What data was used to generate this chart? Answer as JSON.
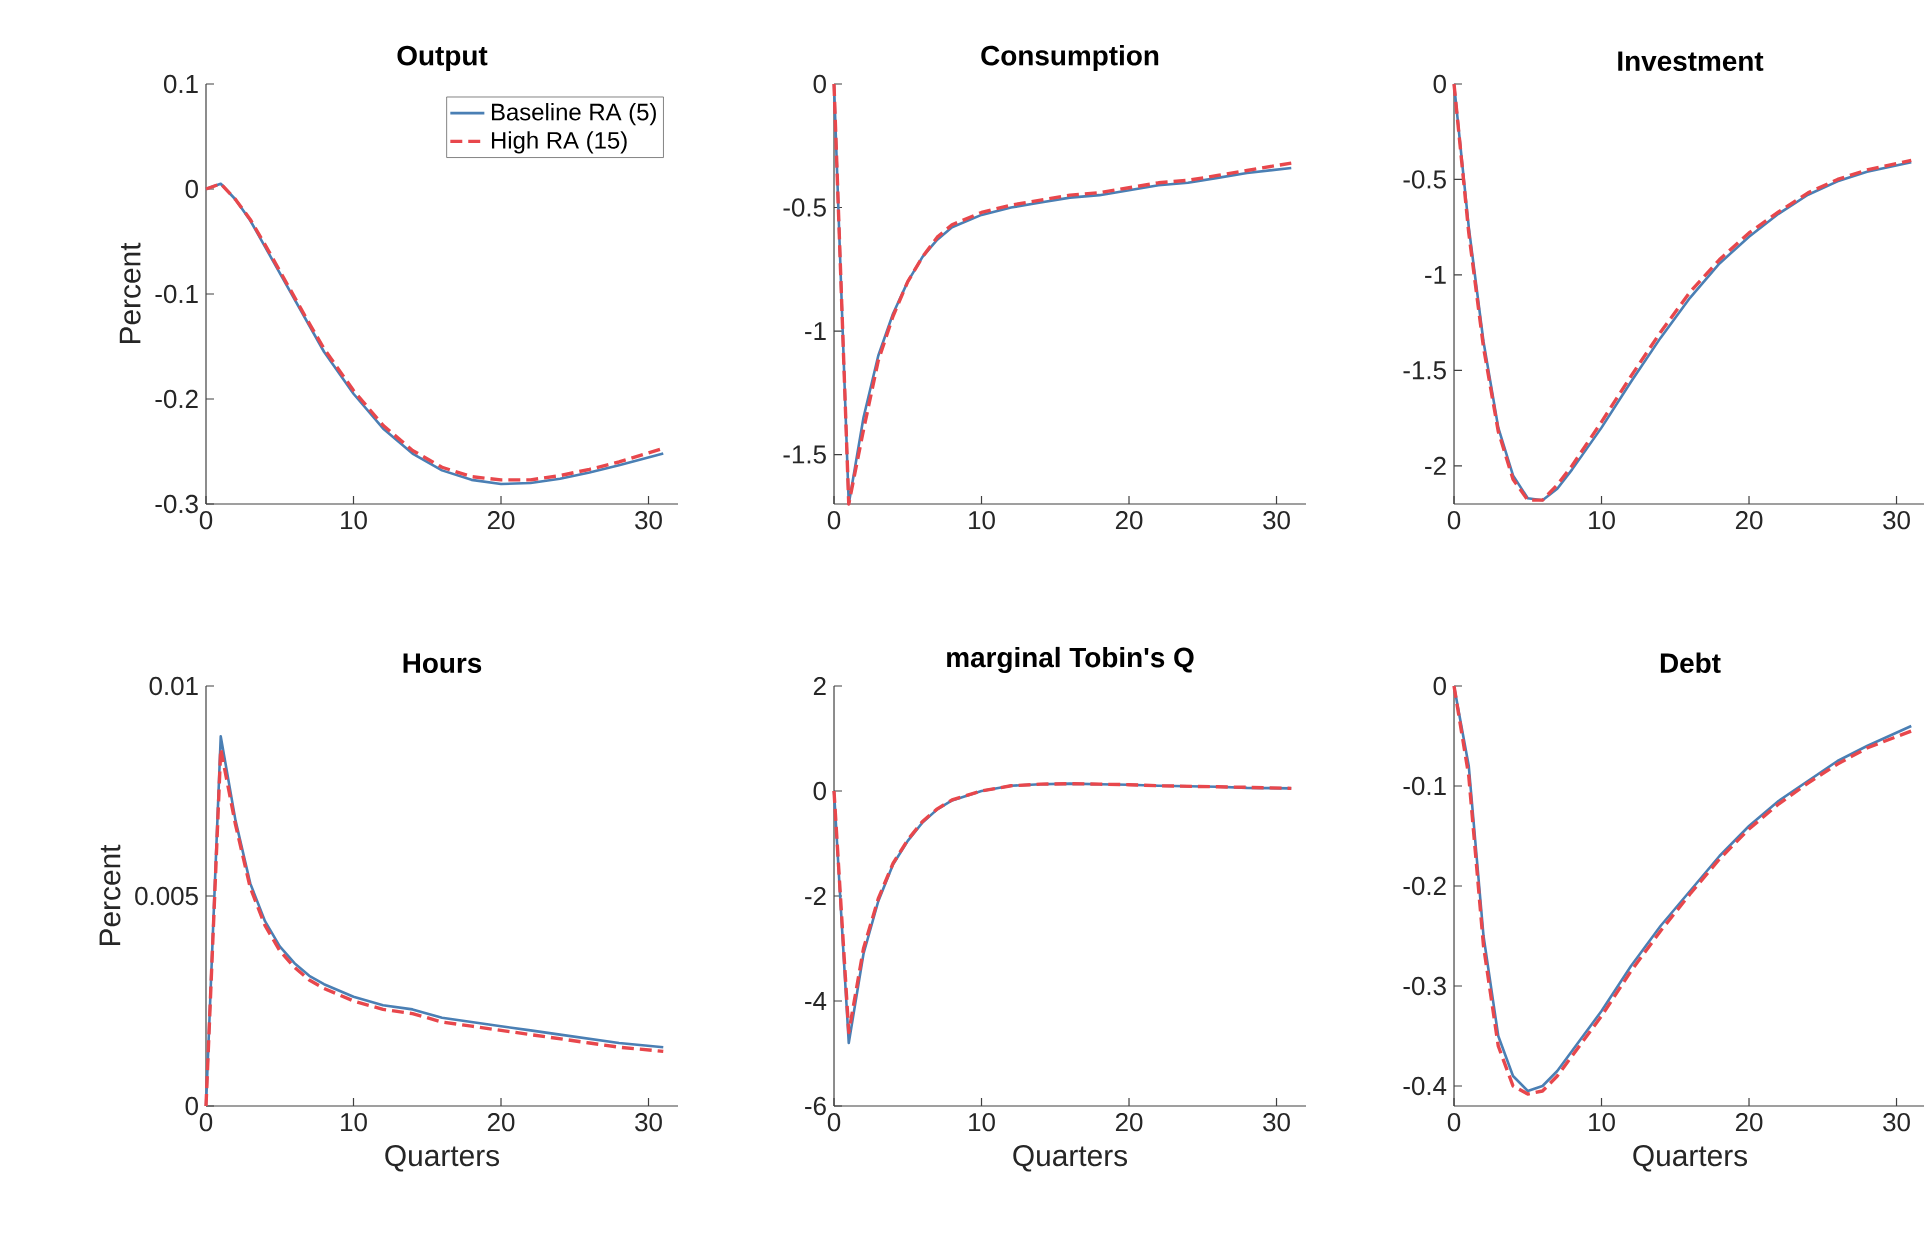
{
  "chart_data": [
    {
      "type": "line",
      "title": "Output",
      "ylabel": "Percent",
      "x": [
        0,
        1,
        2,
        3,
        4,
        5,
        6,
        7,
        8,
        10,
        12,
        14,
        16,
        18,
        20,
        22,
        24,
        26,
        28,
        31
      ],
      "xlim": [
        0,
        32
      ],
      "xticks": [
        0,
        10,
        20,
        30
      ],
      "ylim": [
        -0.3,
        0.1
      ],
      "yticks": [
        -0.3,
        -0.2,
        -0.1,
        0,
        0.1
      ],
      "legend": "top right",
      "series": [
        {
          "name": "Baseline RA (5)",
          "color": "#4a7fb4",
          "line_style": "solid",
          "values": [
            0,
            0.005,
            -0.01,
            -0.03,
            -0.055,
            -0.08,
            -0.105,
            -0.13,
            -0.155,
            -0.195,
            -0.228,
            -0.252,
            -0.268,
            -0.277,
            -0.281,
            -0.28,
            -0.276,
            -0.27,
            -0.263,
            -0.252
          ]
        },
        {
          "name": "High RA (15)",
          "color": "#e8474c",
          "line_style": "dashed",
          "values": [
            0,
            0.005,
            -0.01,
            -0.029,
            -0.053,
            -0.078,
            -0.103,
            -0.128,
            -0.152,
            -0.192,
            -0.225,
            -0.249,
            -0.265,
            -0.274,
            -0.277,
            -0.277,
            -0.273,
            -0.267,
            -0.26,
            -0.247
          ]
        }
      ]
    },
    {
      "type": "line",
      "title": "Consumption",
      "x": [
        0,
        1,
        2,
        3,
        4,
        5,
        6,
        7,
        8,
        10,
        12,
        14,
        16,
        18,
        20,
        22,
        24,
        26,
        28,
        31
      ],
      "xlim": [
        0,
        32
      ],
      "xticks": [
        0,
        10,
        20,
        30
      ],
      "ylim": [
        -1.7,
        0
      ],
      "yticks": [
        -1.5,
        -1,
        -0.5,
        0
      ],
      "series": [
        {
          "color": "#4a7fb4",
          "line_style": "solid",
          "values": [
            0,
            -1.7,
            -1.35,
            -1.1,
            -0.93,
            -0.8,
            -0.7,
            -0.63,
            -0.58,
            -0.53,
            -0.5,
            -0.48,
            -0.46,
            -0.45,
            -0.43,
            -0.41,
            -0.4,
            -0.38,
            -0.36,
            -0.34
          ]
        },
        {
          "color": "#e8474c",
          "line_style": "dashed",
          "values": [
            0,
            -1.7,
            -1.4,
            -1.12,
            -0.94,
            -0.8,
            -0.7,
            -0.62,
            -0.57,
            -0.52,
            -0.49,
            -0.47,
            -0.45,
            -0.44,
            -0.42,
            -0.4,
            -0.39,
            -0.37,
            -0.35,
            -0.32
          ]
        }
      ]
    },
    {
      "type": "line",
      "title": "Investment",
      "x": [
        0,
        1,
        2,
        3,
        4,
        5,
        6,
        7,
        8,
        10,
        12,
        14,
        16,
        18,
        20,
        22,
        24,
        26,
        28,
        31
      ],
      "xlim": [
        0,
        32
      ],
      "xticks": [
        0,
        10,
        20,
        30
      ],
      "ylim": [
        -2.2,
        0
      ],
      "yticks": [
        -2,
        -1.5,
        -1,
        -0.5,
        0
      ],
      "series": [
        {
          "color": "#4a7fb4",
          "line_style": "solid",
          "values": [
            0,
            -0.75,
            -1.35,
            -1.8,
            -2.05,
            -2.17,
            -2.18,
            -2.12,
            -2.02,
            -1.8,
            -1.56,
            -1.33,
            -1.12,
            -0.94,
            -0.8,
            -0.68,
            -0.58,
            -0.51,
            -0.46,
            -0.41
          ]
        },
        {
          "color": "#e8474c",
          "line_style": "dashed",
          "values": [
            0,
            -0.78,
            -1.38,
            -1.82,
            -2.07,
            -2.18,
            -2.18,
            -2.1,
            -2.0,
            -1.77,
            -1.53,
            -1.3,
            -1.09,
            -0.92,
            -0.78,
            -0.67,
            -0.57,
            -0.5,
            -0.45,
            -0.4
          ]
        }
      ]
    },
    {
      "type": "line",
      "title": "Hours",
      "xlabel": "Quarters",
      "ylabel": "Percent",
      "x": [
        0,
        1,
        2,
        3,
        4,
        5,
        6,
        7,
        8,
        10,
        12,
        14,
        16,
        18,
        20,
        22,
        24,
        26,
        28,
        31
      ],
      "xlim": [
        0,
        32
      ],
      "xticks": [
        0,
        10,
        20,
        30
      ],
      "ylim": [
        0,
        0.01
      ],
      "yticks": [
        0,
        0.005,
        0.01
      ],
      "series": [
        {
          "color": "#4a7fb4",
          "line_style": "solid",
          "values": [
            0,
            0.0088,
            0.0068,
            0.0053,
            0.0044,
            0.0038,
            0.0034,
            0.0031,
            0.0029,
            0.0026,
            0.0024,
            0.0023,
            0.0021,
            0.002,
            0.0019,
            0.0018,
            0.0017,
            0.0016,
            0.0015,
            0.0014
          ]
        },
        {
          "color": "#e8474c",
          "line_style": "dashed",
          "values": [
            0,
            0.0085,
            0.0067,
            0.0052,
            0.0043,
            0.0037,
            0.0033,
            0.003,
            0.0028,
            0.0025,
            0.0023,
            0.0022,
            0.002,
            0.0019,
            0.0018,
            0.0017,
            0.0016,
            0.0015,
            0.0014,
            0.0013
          ]
        }
      ]
    },
    {
      "type": "line",
      "title": "marginal Tobin's Q",
      "xlabel": "Quarters",
      "x": [
        0,
        1,
        2,
        3,
        4,
        5,
        6,
        7,
        8,
        10,
        12,
        14,
        16,
        18,
        20,
        22,
        24,
        26,
        28,
        31
      ],
      "xlim": [
        0,
        32
      ],
      "xticks": [
        0,
        10,
        20,
        30
      ],
      "ylim": [
        -6,
        2
      ],
      "yticks": [
        -6,
        -4,
        -2,
        0,
        2
      ],
      "series": [
        {
          "color": "#4a7fb4",
          "line_style": "solid",
          "values": [
            0,
            -4.8,
            -3.1,
            -2.1,
            -1.4,
            -0.95,
            -0.6,
            -0.35,
            -0.18,
            0,
            0.1,
            0.13,
            0.14,
            0.13,
            0.12,
            0.1,
            0.09,
            0.08,
            0.06,
            0.05
          ]
        },
        {
          "color": "#e8474c",
          "line_style": "dashed",
          "values": [
            0,
            -4.6,
            -3.0,
            -2.05,
            -1.38,
            -0.93,
            -0.58,
            -0.34,
            -0.17,
            0,
            0.1,
            0.13,
            0.14,
            0.13,
            0.12,
            0.1,
            0.09,
            0.08,
            0.07,
            0.05
          ]
        }
      ]
    },
    {
      "type": "line",
      "title": "Debt",
      "xlabel": "Quarters",
      "x": [
        0,
        1,
        2,
        3,
        4,
        5,
        6,
        7,
        8,
        10,
        12,
        14,
        16,
        18,
        20,
        22,
        24,
        26,
        28,
        31
      ],
      "xlim": [
        0,
        32
      ],
      "xticks": [
        0,
        10,
        20,
        30
      ],
      "ylim": [
        -0.42,
        0
      ],
      "yticks": [
        -0.4,
        -0.3,
        -0.2,
        -0.1,
        0
      ],
      "series": [
        {
          "color": "#4a7fb4",
          "line_style": "solid",
          "values": [
            0,
            -0.08,
            -0.25,
            -0.35,
            -0.39,
            -0.405,
            -0.4,
            -0.385,
            -0.365,
            -0.325,
            -0.28,
            -0.24,
            -0.205,
            -0.17,
            -0.14,
            -0.115,
            -0.095,
            -0.075,
            -0.06,
            -0.04
          ]
        },
        {
          "color": "#e8474c",
          "line_style": "dashed",
          "values": [
            0,
            -0.09,
            -0.26,
            -0.36,
            -0.4,
            -0.408,
            -0.405,
            -0.39,
            -0.37,
            -0.33,
            -0.285,
            -0.245,
            -0.208,
            -0.173,
            -0.143,
            -0.118,
            -0.097,
            -0.078,
            -0.062,
            -0.045
          ]
        }
      ]
    }
  ]
}
